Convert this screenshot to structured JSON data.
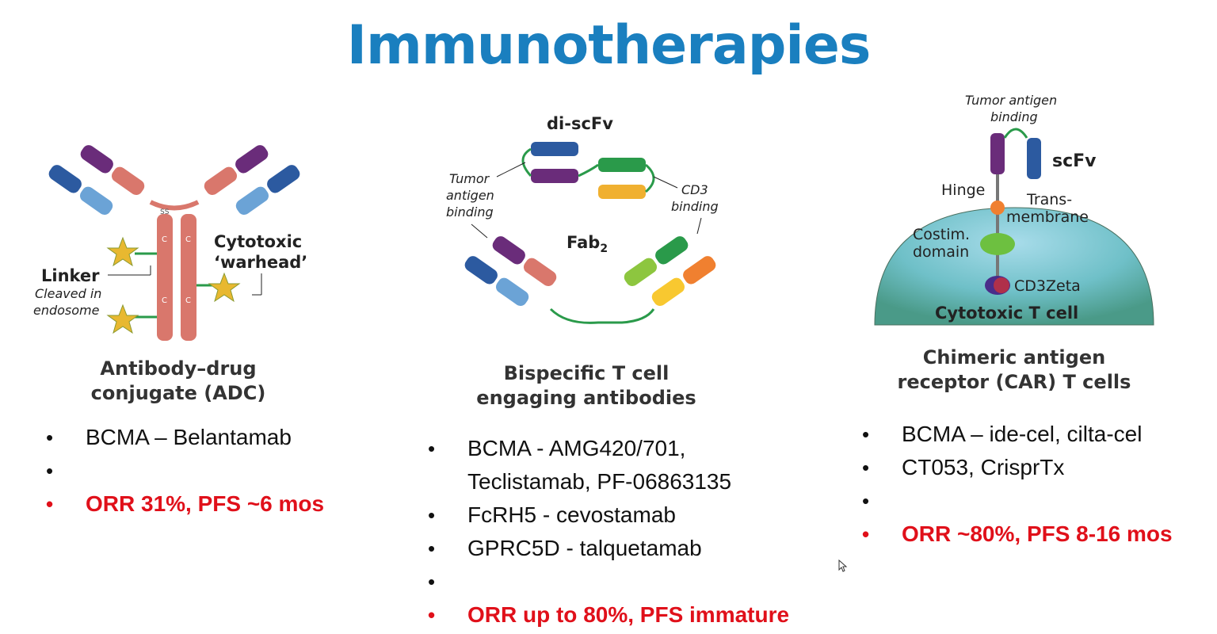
{
  "slide": {
    "title": "Immunotherapies"
  },
  "adc": {
    "caption_line1": "Antibody–drug",
    "caption_line2": "conjugate (ADC)",
    "label_linker": "Linker",
    "label_cleaved1": "Cleaved in",
    "label_cleaved2": "endosome",
    "label_cytotoxic": "Cytotoxic",
    "label_warhead": "‘warhead’",
    "bullets": [
      {
        "text": "BCMA – Belantamab",
        "red": false
      },
      {
        "text": "ORR 31%, PFS ~6 mos",
        "red": true
      }
    ]
  },
  "bite": {
    "caption_line1": "Bispecific T cell",
    "caption_line2": "engaging antibodies",
    "label_discfv": "di-scFv",
    "label_fab2": "Fab",
    "label_fab2_sub": "2",
    "label_tumor1": "Tumor",
    "label_tumor2": "antigen",
    "label_tumor3": "binding",
    "label_cd3_1": "CD3",
    "label_cd3_2": "binding",
    "bullets": [
      {
        "text": "BCMA - AMG420/701,",
        "red": false
      },
      {
        "text": "Teclistamab, PF-06863135",
        "red": false,
        "cont": true
      },
      {
        "text": "FcRH5 - cevostamab",
        "red": false
      },
      {
        "text": "GPRC5D -  talquetamab",
        "red": false
      },
      {
        "text": "ORR up to 80%, PFS immature",
        "red": true
      }
    ]
  },
  "car": {
    "caption_line1": "Chimeric antigen",
    "caption_line2": "receptor (CAR) T cells",
    "label_tumor1": "Tumor antigen",
    "label_tumor2": "binding",
    "label_scfv": "scFv",
    "label_hinge": "Hinge",
    "label_trans1": "Trans-",
    "label_trans2": "membrane",
    "label_costim1": "Costim.",
    "label_costim2": "domain",
    "label_cd3zeta": "CD3Zeta",
    "label_cell": "Cytotoxic T cell",
    "bullets": [
      {
        "text": "BCMA – ide-cel, cilta-cel",
        "red": false
      },
      {
        "text": "CT053, CrisprTx",
        "red": false
      },
      {
        "text": "ORR ~80%, PFS 8-16 mos",
        "red": true
      }
    ]
  }
}
